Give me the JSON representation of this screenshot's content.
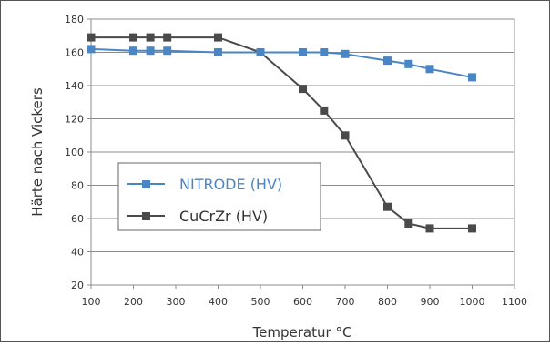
{
  "chart_data": {
    "type": "line",
    "xlabel": "Temperatur °C",
    "ylabel": "Härte nach Vickers",
    "xlim": [
      100,
      1100
    ],
    "ylim": [
      20,
      180
    ],
    "x_ticks": [
      "100",
      "200",
      "300",
      "400",
      "500",
      "600",
      "700",
      "800",
      "900",
      "1000",
      "1100"
    ],
    "y_ticks": [
      "20",
      "40",
      "60",
      "80",
      "100",
      "120",
      "140",
      "160",
      "180"
    ],
    "grid": "horizontal",
    "legend_position": "lower-left",
    "series": [
      {
        "name": "NITRODE (HV)",
        "color": "#4a86c6",
        "marker": "square",
        "x": [
          100,
          200,
          240,
          280,
          400,
          500,
          600,
          650,
          700,
          800,
          850,
          900,
          1000
        ],
        "y": [
          162,
          161,
          161,
          161,
          160,
          160,
          160,
          160,
          159,
          155,
          153,
          150,
          145
        ]
      },
      {
        "name": "CuCrZr (HV)",
        "color": "#4a4a4a",
        "marker": "square",
        "x": [
          100,
          200,
          240,
          280,
          400,
          500,
          600,
          650,
          700,
          800,
          850,
          900,
          1000
        ],
        "y": [
          169,
          169,
          169,
          169,
          169,
          160,
          138,
          125,
          110,
          67,
          57,
          54,
          54
        ]
      }
    ]
  }
}
